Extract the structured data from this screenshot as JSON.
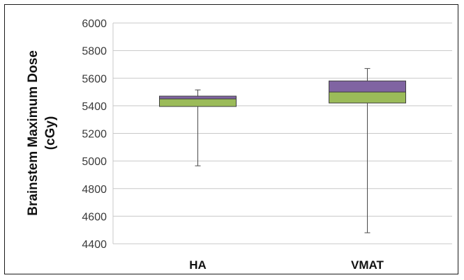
{
  "chart_data": {
    "type": "box",
    "title": "",
    "ylabel_lines": [
      "Brainstem Maximum Dose",
      "(cGy)"
    ],
    "xlabel": "",
    "ylim": [
      4400,
      6000
    ],
    "yticks": [
      4400,
      4600,
      4800,
      5000,
      5200,
      5400,
      5600,
      5800,
      6000
    ],
    "grid": true,
    "categories": [
      "HA",
      "VMAT"
    ],
    "boxes": [
      {
        "category": "HA",
        "min": 4965,
        "q1": 5395,
        "median": 5450,
        "q3": 5470,
        "max": 5515
      },
      {
        "category": "VMAT",
        "min": 4480,
        "q1": 5420,
        "median": 5500,
        "q3": 5580,
        "max": 5670
      }
    ],
    "colors": {
      "lower_box": "#9bbb59",
      "upper_box": "#8064a2",
      "grid": "#c8c8c8",
      "whisker": "#4a4a4a"
    }
  }
}
